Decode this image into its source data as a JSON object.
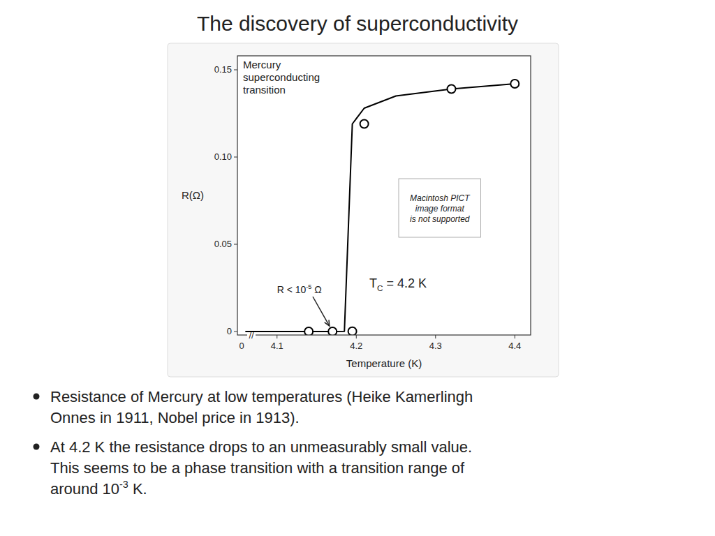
{
  "chart_data": {
    "type": "line",
    "title": "The discovery of superconductivity",
    "xlabel": "Temperature (K)",
    "ylabel": "R(Ω)",
    "xlim": [
      4.05,
      4.42
    ],
    "ylim": [
      -0.002,
      0.158
    ],
    "xticks": [
      4.1,
      4.2,
      4.3,
      4.4
    ],
    "yticks": [
      0,
      0.05,
      {
        "value": 0.1,
        "label": "0.10"
      },
      0.15
    ],
    "grid": false,
    "axis_break": {
      "label": "0",
      "symbol": "//"
    },
    "series": [
      {
        "type": "line",
        "color": "#000000",
        "x": [
          4.06,
          4.1,
          4.14,
          4.17,
          4.185,
          4.195,
          4.21,
          4.25,
          4.32,
          4.4
        ],
        "values": [
          0.0,
          0.0,
          0.0,
          0.0,
          0.0001,
          0.119,
          0.128,
          0.135,
          0.139,
          0.142
        ]
      },
      {
        "type": "scatter",
        "color": "#000000",
        "marker": "circle",
        "x": [
          4.14,
          4.17,
          4.195,
          4.21,
          4.32,
          4.4
        ],
        "values": [
          0.0,
          0.0,
          0.0001,
          0.119,
          0.139,
          0.142
        ]
      }
    ],
    "annotations": [
      {
        "text": "Mercury\nsuperconducting\ntransition"
      },
      {
        "text": "R < 10",
        "sup": "-5",
        "after": " Ω"
      },
      {
        "text": "T",
        "sub": "C",
        "after": " = 4.2 K"
      },
      {
        "text": "Macintosh PICT\nimage format\nis not supported"
      }
    ],
    "notes": [
      {
        "lines": [
          "Resistance of Mercury at low temperatures (Heike Kamerlingh",
          "Onnes in 1911, Nobel price in 1913)."
        ]
      },
      {
        "lines": [
          "At 4.2 K the resistance drops to an unmeasurably small value.",
          "This seems to be a phase transition with a transition range of",
          {
            "text": "around 10",
            "sup": "-3",
            "after": " K."
          }
        ]
      }
    ]
  }
}
